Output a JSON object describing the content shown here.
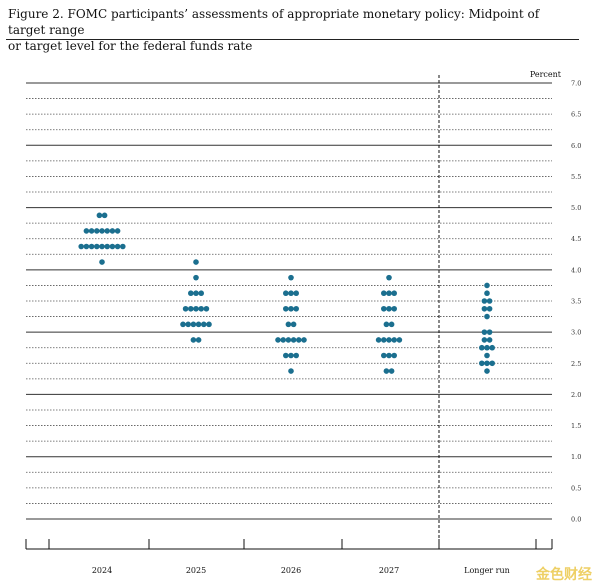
{
  "figure": {
    "title_line1": "Figure 2.  FOMC participants’ assessments of appropriate monetary policy: Midpoint of target range",
    "title_line2": "or target level for the federal funds rate",
    "watermark": "金色财经"
  },
  "chart_data": {
    "type": "scatter",
    "title": "FOMC participants’ assessments of appropriate monetary policy: Midpoint of target range or target level for the federal funds rate",
    "ylabel": "Percent",
    "ylim": [
      0,
      7.0
    ],
    "y_ticks": [
      "7.0",
      "6.5",
      "6.0",
      "5.5",
      "5.0",
      "4.5",
      "4.0",
      "3.5",
      "3.0",
      "2.5",
      "2.0",
      "1.5",
      "1.0",
      "0.5",
      "0.0"
    ],
    "categories": [
      "2024",
      "2025",
      "2026",
      "2027",
      "Longer run"
    ],
    "category_labels": [
      "2024",
      "2025",
      "2026",
      "2027",
      "Longer run"
    ],
    "dot_color": "#1b6f8f",
    "separator": "dashed line between 2027 and Longer run",
    "grid": "horizontal lines at every 0.25",
    "dots": [
      {
        "category": "2024",
        "points": [
          {
            "y": 4.875,
            "n": 2
          },
          {
            "y": 4.625,
            "n": 7
          },
          {
            "y": 4.375,
            "n": 9
          },
          {
            "y": 4.125,
            "n": 1
          }
        ]
      },
      {
        "category": "2025",
        "points": [
          {
            "y": 4.125,
            "n": 1
          },
          {
            "y": 3.875,
            "n": 1
          },
          {
            "y": 3.625,
            "n": 3
          },
          {
            "y": 3.375,
            "n": 5
          },
          {
            "y": 3.125,
            "n": 6
          },
          {
            "y": 2.875,
            "n": 2
          }
        ]
      },
      {
        "category": "2026",
        "points": [
          {
            "y": 3.875,
            "n": 1
          },
          {
            "y": 3.625,
            "n": 3
          },
          {
            "y": 3.375,
            "n": 3
          },
          {
            "y": 3.125,
            "n": 2
          },
          {
            "y": 2.875,
            "n": 6
          },
          {
            "y": 2.625,
            "n": 3
          },
          {
            "y": 2.375,
            "n": 1
          }
        ]
      },
      {
        "category": "2027",
        "points": [
          {
            "y": 3.875,
            "n": 1
          },
          {
            "y": 3.625,
            "n": 3
          },
          {
            "y": 3.375,
            "n": 3
          },
          {
            "y": 3.125,
            "n": 2
          },
          {
            "y": 2.875,
            "n": 5
          },
          {
            "y": 2.625,
            "n": 3
          },
          {
            "y": 2.375,
            "n": 2
          }
        ]
      },
      {
        "category": "Longer run",
        "points": [
          {
            "y": 3.75,
            "n": 1
          },
          {
            "y": 3.625,
            "n": 1
          },
          {
            "y": 3.5,
            "n": 2
          },
          {
            "y": 3.375,
            "n": 2
          },
          {
            "y": 3.25,
            "n": 1
          },
          {
            "y": 3.0,
            "n": 2
          },
          {
            "y": 2.875,
            "n": 2
          },
          {
            "y": 2.75,
            "n": 3
          },
          {
            "y": 2.625,
            "n": 1
          },
          {
            "y": 2.5,
            "n": 3
          },
          {
            "y": 2.375,
            "n": 1
          }
        ]
      }
    ]
  }
}
